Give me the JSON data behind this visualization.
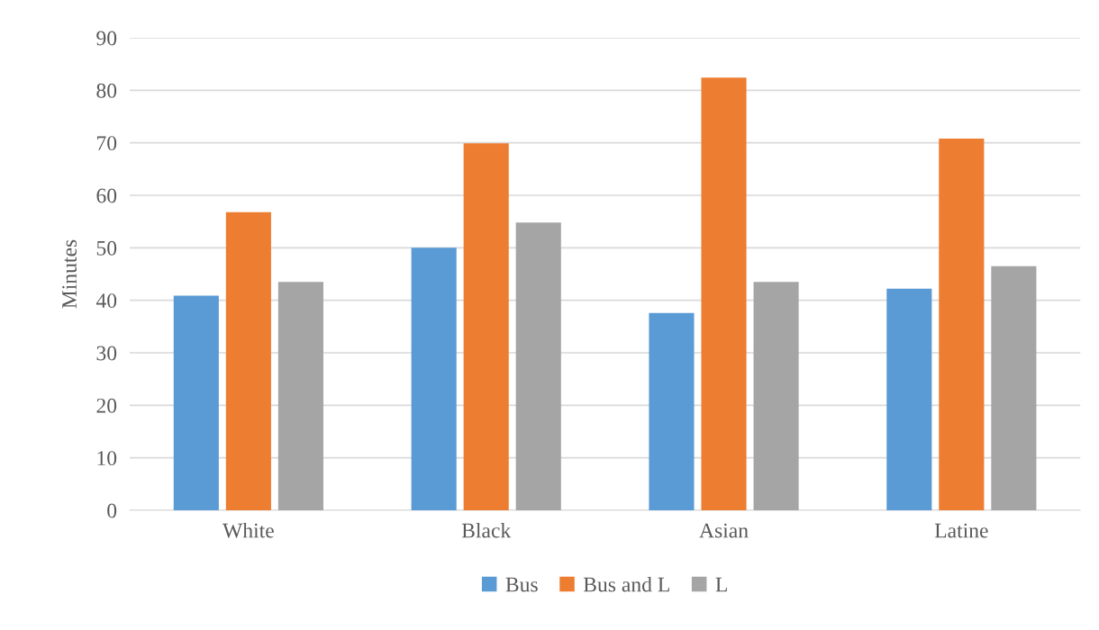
{
  "chart_data": {
    "type": "bar",
    "ylabel": "Minutes",
    "categories": [
      "White",
      "Black",
      "Asian",
      "Latine"
    ],
    "series": [
      {
        "name": "Bus",
        "color": "#5b9bd5",
        "values": [
          40.9,
          50.0,
          37.6,
          42.2
        ]
      },
      {
        "name": "Bus and L",
        "color": "#ed7d31",
        "values": [
          56.8,
          69.9,
          82.4,
          70.8
        ]
      },
      {
        "name": "L",
        "color": "#a5a5a5",
        "values": [
          43.5,
          54.8,
          43.5,
          46.5
        ]
      }
    ],
    "ylim": [
      0,
      90
    ],
    "yticks": [
      0,
      10,
      20,
      30,
      40,
      50,
      60,
      70,
      80,
      90
    ],
    "grid": "y",
    "legend": "bottom"
  }
}
